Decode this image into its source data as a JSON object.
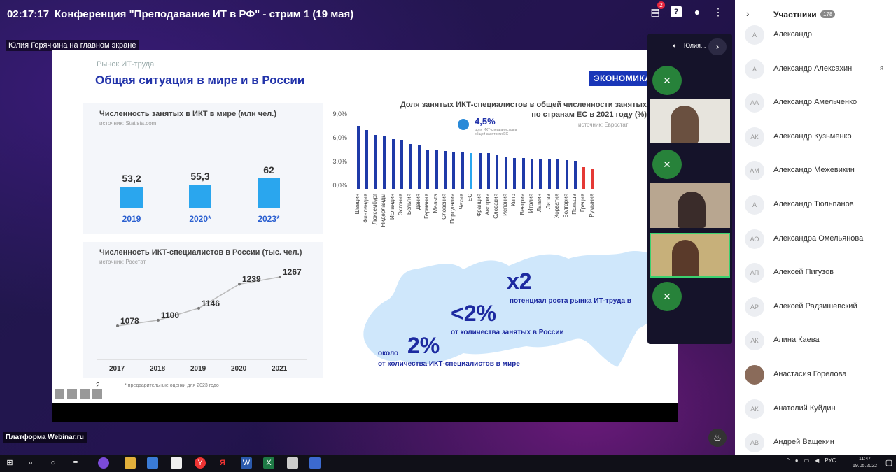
{
  "header": {
    "time": "02:17:17",
    "title": "Конференция \"Преподавание ИТ в РФ\" - стрим 1 (19 мая)",
    "chat_badge": "2"
  },
  "presenter_label": "Юлия Горячкина на главном экране",
  "slide": {
    "subtitle": "Рынок ИТ-труда",
    "title": "Общая ситуация в мире и в России",
    "logo": "ЭКОНОМИКА",
    "page_number": "2",
    "footnote": "* предварительные оценки для 2023 годо",
    "world_chart": {
      "title": "Численность занятых в ИКТ в мире (млн чел.)",
      "source": "источник: Statista.com"
    },
    "russia_chart": {
      "title": "Численность ИКТ-специалистов в России (тыс. чел.)",
      "source": "источник: Росстат"
    },
    "eu_chart": {
      "title_line1": "Доля занятых ИКТ-специалистов в общей численности занятых",
      "title_line2": "по странам ЕС в 2021 году (%)",
      "source": "источник: Евростат",
      "badge_value": "4,5%",
      "badge_note": "доля ИКТ-специалистов в общей занятости ЕС"
    },
    "map": {
      "x2": "x2",
      "x2_text": "потенциал роста рынка ИТ-труда в",
      "lt2": "<2%",
      "lt2_text": "от количества занятых в России",
      "about": "около",
      "p2": "2%",
      "p2_text": "от количества ИКТ-специалистов в мире"
    }
  },
  "chart_data": [
    {
      "type": "bar",
      "title": "Численность занятых в ИКТ в мире (млн чел.)",
      "categories": [
        "2019",
        "2020*",
        "2023*"
      ],
      "values": [
        53.2,
        55.3,
        62
      ],
      "value_labels": [
        "53,2",
        "55,3",
        "62"
      ]
    },
    {
      "type": "line",
      "title": "Численность ИКТ-специалистов в России (тыс. чел.)",
      "x": [
        "2017",
        "2018",
        "2019",
        "2020",
        "2021"
      ],
      "values": [
        1078,
        1100,
        1146,
        1239,
        1267
      ]
    },
    {
      "type": "bar",
      "title": "Доля занятых ИКТ-специалистов в общей численности занятых по странам ЕС в 2021 году (%)",
      "yticks": [
        "9,0%",
        "6,0%",
        "3,0%",
        "0,0%"
      ],
      "ylim": [
        0,
        9
      ],
      "categories": [
        "Швеция",
        "Финляндия",
        "Люксембург",
        "Нидерланды",
        "Ирландия",
        "Эстония",
        "Бельгия",
        "Дания",
        "Германия",
        "Мальта",
        "Словения",
        "Португалия",
        "Чехия",
        "ЕС",
        "Франция",
        "Австрия",
        "Словакия",
        "Испания",
        "Кипр",
        "Венгрия",
        "Италия",
        "Латвия",
        "Литва",
        "Хорватия",
        "Болгария",
        "Польша",
        "Греция",
        "Румыния"
      ],
      "values": [
        8.0,
        7.4,
        6.8,
        6.7,
        6.3,
        6.2,
        5.7,
        5.6,
        5.0,
        4.9,
        4.8,
        4.7,
        4.6,
        4.5,
        4.5,
        4.5,
        4.3,
        4.1,
        3.9,
        3.9,
        3.8,
        3.8,
        3.8,
        3.7,
        3.6,
        3.5,
        2.7,
        2.6
      ],
      "colors": {
        "default": "#1f3aa8",
        "eu": "#2aa6ee",
        "low": "#e53935"
      }
    }
  ],
  "video_panel": {
    "header_name": "Юлия..."
  },
  "platform_label": "Платформа Webinar.ru",
  "participants": {
    "title": "Участники",
    "count": "178",
    "items": [
      {
        "initials": "А",
        "name": "Александр",
        "extra": ""
      },
      {
        "initials": "А",
        "name": "Александр Алексахин",
        "extra": "я"
      },
      {
        "initials": "АА",
        "name": "Александр Амельченко",
        "extra": ""
      },
      {
        "initials": "АК",
        "name": "Александр Кузьменко",
        "extra": ""
      },
      {
        "initials": "АМ",
        "name": "Александр Межевикин",
        "extra": ""
      },
      {
        "initials": "А",
        "name": "Александр Тюльпанов",
        "extra": ""
      },
      {
        "initials": "АО",
        "name": "Александра Омельянова",
        "extra": ""
      },
      {
        "initials": "АП",
        "name": "Алексей Пигузов",
        "extra": ""
      },
      {
        "initials": "АР",
        "name": "Алексей Радзишевский",
        "extra": ""
      },
      {
        "initials": "АК",
        "name": "Алина Каева",
        "extra": ""
      },
      {
        "initials": "",
        "name": "Анастасия Горелова",
        "extra": ""
      },
      {
        "initials": "АК",
        "name": "Анатолий Куйдин",
        "extra": ""
      },
      {
        "initials": "АВ",
        "name": "Андрей Ващекин",
        "extra": ""
      }
    ]
  },
  "taskbar": {
    "lang": "РУС",
    "time": "11:47",
    "date": "19.05.2022"
  }
}
